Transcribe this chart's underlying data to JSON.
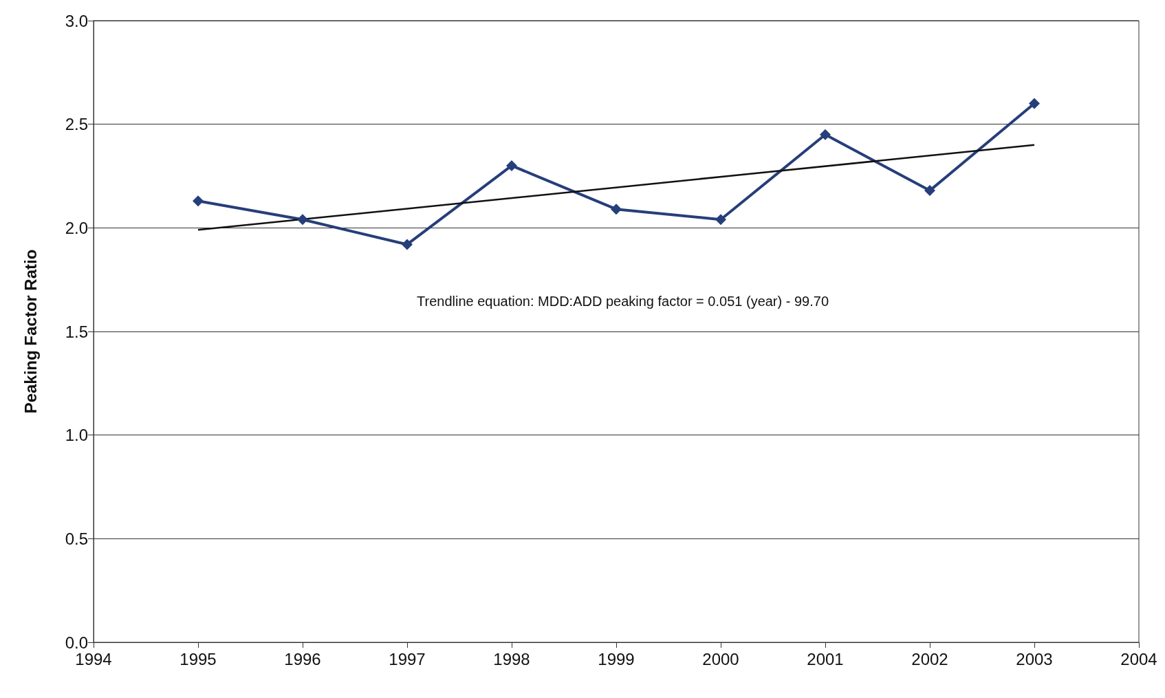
{
  "chart_data": {
    "type": "line",
    "ylabel": "Peaking Factor Ratio",
    "x": [
      1995,
      1996,
      1997,
      1998,
      1999,
      2000,
      2001,
      2002,
      2003
    ],
    "series": [
      {
        "color": "#263e7a",
        "values": [
          2.13,
          2.04,
          1.92,
          2.3,
          2.09,
          2.04,
          2.45,
          2.18,
          2.6
        ],
        "marker": "diamond"
      },
      {
        "type": "line",
        "color": "#111111",
        "x": [
          1995,
          2003
        ],
        "values": [
          1.99,
          2.4
        ],
        "marker": "none"
      }
    ],
    "xlim": [
      1994,
      2004
    ],
    "xticks": [
      1994,
      1995,
      1996,
      1997,
      1998,
      1999,
      2000,
      2001,
      2002,
      2003,
      2004
    ],
    "ylim": [
      0,
      3
    ],
    "yticks": [
      {
        "value": 0,
        "label": "0.0"
      },
      0.5,
      {
        "value": 1,
        "label": "1.0"
      },
      1.5,
      {
        "value": 2,
        "label": "2.0"
      },
      2.5,
      {
        "value": 3,
        "label": "3.0"
      }
    ],
    "grid": "y",
    "annotations": [
      "Trendline equation: MDD:ADD peaking factor = 0.051 (year) - 99.70"
    ]
  }
}
